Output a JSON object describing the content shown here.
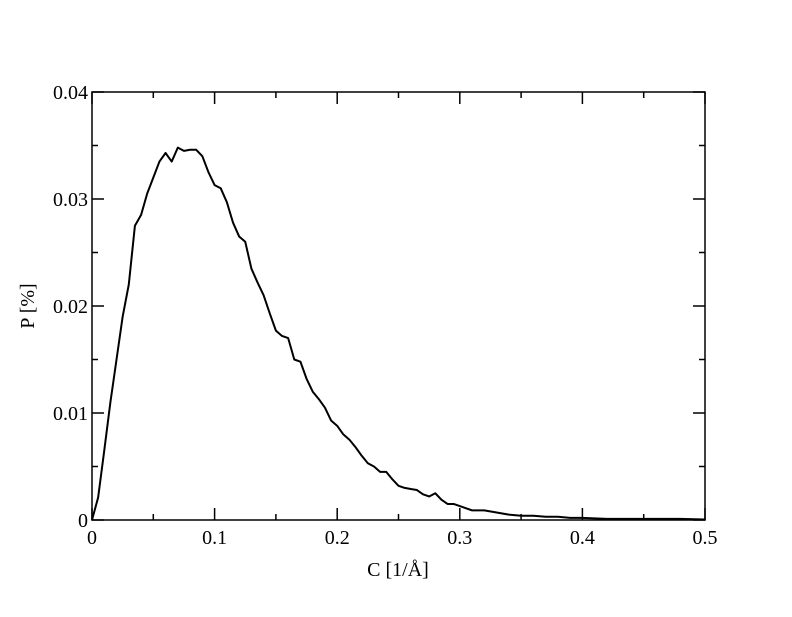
{
  "chart_data": {
    "type": "line",
    "x_label": "C [1/Å]",
    "y_label": "P [%]",
    "x": [
      0,
      0.005,
      0.01,
      0.015,
      0.02,
      0.025,
      0.03,
      0.035,
      0.04,
      0.045,
      0.05,
      0.055,
      0.06,
      0.065,
      0.07,
      0.075,
      0.08,
      0.085,
      0.09,
      0.095,
      0.1,
      0.105,
      0.11,
      0.115,
      0.12,
      0.125,
      0.13,
      0.135,
      0.14,
      0.145,
      0.15,
      0.155,
      0.16,
      0.165,
      0.17,
      0.175,
      0.18,
      0.185,
      0.19,
      0.195,
      0.2,
      0.205,
      0.21,
      0.215,
      0.22,
      0.225,
      0.23,
      0.235,
      0.24,
      0.245,
      0.25,
      0.255,
      0.26,
      0.265,
      0.27,
      0.275,
      0.28,
      0.285,
      0.29,
      0.295,
      0.3,
      0.31,
      0.32,
      0.33,
      0.34,
      0.35,
      0.36,
      0.37,
      0.38,
      0.39,
      0.4,
      0.42,
      0.44,
      0.46,
      0.48,
      0.5
    ],
    "series": [
      {
        "color": "#000000",
        "values": [
          0,
          0.0021,
          0.0065,
          0.011,
          0.015,
          0.019,
          0.022,
          0.0275,
          0.0285,
          0.0305,
          0.032,
          0.0335,
          0.0343,
          0.0335,
          0.0348,
          0.0345,
          0.0346,
          0.0346,
          0.034,
          0.0325,
          0.0313,
          0.031,
          0.0297,
          0.0278,
          0.0265,
          0.026,
          0.0235,
          0.0222,
          0.021,
          0.0193,
          0.0177,
          0.0172,
          0.017,
          0.015,
          0.0148,
          0.0132,
          0.012,
          0.0113,
          0.0105,
          0.0093,
          0.0088,
          0.008,
          0.0075,
          0.0068,
          0.006,
          0.0053,
          0.005,
          0.0045,
          0.0045,
          0.0038,
          0.0032,
          0.003,
          0.0029,
          0.0028,
          0.0024,
          0.0022,
          0.0025,
          0.0019,
          0.0015,
          0.0015,
          0.0013,
          0.0009,
          0.0009,
          0.0007,
          0.0005,
          0.0004,
          0.0004,
          0.0003,
          0.0003,
          0.0002,
          0.0002,
          0.0001,
          0.0001,
          0.0001,
          0.0001,
          5e-05
        ]
      }
    ],
    "xlim": [
      0,
      0.5
    ],
    "xticks": [
      0,
      0.1,
      0.2,
      0.3,
      0.4,
      0.5
    ],
    "xticks_minor": [
      0.05,
      0.15,
      0.25,
      0.35,
      0.45
    ],
    "ylim": [
      0,
      0.04
    ],
    "yticks": [
      0,
      0.01,
      0.02,
      0.03,
      0.04
    ],
    "yticks_minor": [
      0.005,
      0.015,
      0.025,
      0.035
    ]
  }
}
